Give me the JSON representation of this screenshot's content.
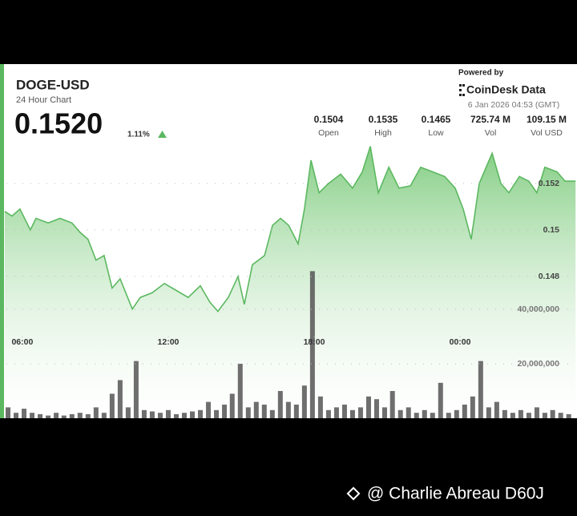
{
  "header": {
    "title": "DOGE-USD",
    "subtitle": "24 Hour Chart",
    "price": "0.1520",
    "change": "1.11%",
    "powered_by": "Powered by",
    "brand": "CoinDesk Data",
    "timestamp": "6 Jan 2026 04:53 (GMT)"
  },
  "stats": [
    {
      "value": "0.1504",
      "label": "Open"
    },
    {
      "value": "0.1535",
      "label": "High"
    },
    {
      "value": "0.1465",
      "label": "Low"
    },
    {
      "value": "725.74 M",
      "label": "Vol"
    },
    {
      "value": "109.15 M",
      "label": "Vol USD"
    }
  ],
  "chart_data": [
    {
      "type": "area",
      "color": "#5cb860",
      "x": [
        5.27,
        5.57,
        5.9,
        6.33,
        6.56,
        7.06,
        7.55,
        8.04,
        8.37,
        8.7,
        9.03,
        9.36,
        9.69,
        10.02,
        10.52,
        10.85,
        11.34,
        11.84,
        12.33,
        12.82,
        13.32,
        13.71,
        14.04,
        14.47,
        14.87,
        15.13,
        15.46,
        15.96,
        16.29,
        16.62,
        16.95,
        17.34,
        17.6,
        17.87,
        18.2,
        18.59,
        19.09,
        19.58,
        19.98,
        20.31,
        20.64,
        21.07,
        21.49,
        21.96,
        22.38,
        22.88,
        23.37,
        23.8,
        24.13,
        24.46,
        24.79,
        25.32,
        25.68,
        26.01,
        26.44,
        26.83,
        27.16,
        27.49,
        27.99,
        28.32,
        28.75
      ],
      "values": [
        0.1508,
        0.1506,
        0.1509,
        0.15,
        0.1505,
        0.1503,
        0.1505,
        0.1503,
        0.1499,
        0.1496,
        0.1487,
        0.1489,
        0.1475,
        0.1479,
        0.1466,
        0.1471,
        0.1473,
        0.1477,
        0.1474,
        0.1471,
        0.1476,
        0.1469,
        0.1465,
        0.1471,
        0.148,
        0.1468,
        0.1485,
        0.1489,
        0.1502,
        0.1505,
        0.1502,
        0.1494,
        0.1509,
        0.153,
        0.1516,
        0.152,
        0.1524,
        0.1518,
        0.1525,
        0.1536,
        0.1516,
        0.1527,
        0.1518,
        0.1519,
        0.1527,
        0.1525,
        0.1523,
        0.1518,
        0.1509,
        0.1496,
        0.152,
        0.1533,
        0.152,
        0.1516,
        0.1523,
        0.1521,
        0.1516,
        0.1527,
        0.1525,
        0.1521,
        0.1521
      ],
      "xlim": [
        5.08,
        28.81
      ],
      "ylim": [
        0.1419,
        0.15369
      ],
      "xticks": [
        {
          "value": 6,
          "label": "06:00"
        },
        {
          "value": 12,
          "label": "12:00"
        },
        {
          "value": 18,
          "label": "18:00"
        },
        {
          "value": 24,
          "label": "00:00"
        }
      ],
      "yticks": [
        0.148,
        0.15,
        0.152
      ],
      "grid": true
    },
    {
      "type": "bar",
      "color": "#555555",
      "x": [
        5.41,
        5.74,
        6.07,
        6.4,
        6.73,
        7.06,
        7.39,
        7.71,
        8.04,
        8.37,
        8.7,
        9.03,
        9.36,
        9.69,
        10.02,
        10.35,
        10.68,
        11.01,
        11.34,
        11.67,
        12.0,
        12.33,
        12.66,
        12.99,
        13.32,
        13.65,
        13.98,
        14.31,
        14.63,
        14.96,
        15.29,
        15.62,
        15.95,
        16.28,
        16.61,
        16.94,
        17.27,
        17.6,
        17.93,
        18.26,
        18.59,
        18.92,
        19.25,
        19.58,
        19.91,
        20.24,
        20.57,
        20.9,
        21.22,
        21.55,
        21.88,
        22.21,
        22.54,
        22.87,
        23.2,
        23.53,
        23.86,
        24.19,
        24.52,
        24.85,
        25.18,
        25.51,
        25.84,
        26.17,
        26.5,
        26.83,
        27.16,
        27.49,
        27.81,
        28.14,
        28.47
      ],
      "values": [
        4000000,
        2000000,
        3500000,
        2000000,
        1500000,
        1000000,
        2000000,
        1000000,
        1500000,
        2000000,
        1500000,
        4000000,
        2000000,
        9000000,
        14000000,
        4000000,
        21000000,
        3000000,
        2500000,
        2000000,
        3000000,
        1500000,
        2000000,
        2500000,
        3000000,
        6000000,
        3000000,
        5000000,
        9000000,
        20000000,
        4000000,
        6000000,
        5000000,
        3000000,
        10000000,
        6000000,
        5000000,
        12000000,
        54000000,
        8000000,
        3000000,
        4000000,
        5000000,
        3000000,
        4000000,
        8000000,
        7000000,
        4000000,
        10000000,
        3000000,
        4000000,
        2000000,
        3000000,
        2000000,
        13000000,
        2000000,
        3000000,
        5000000,
        8000000,
        21000000,
        4000000,
        6000000,
        3000000,
        2000000,
        3000000,
        2000000,
        4000000,
        2000000,
        3000000,
        2000000,
        1500000
      ],
      "xlim": [
        5.08,
        28.81
      ],
      "ylim": [
        0,
        100600000
      ],
      "yticks": [
        {
          "value": 20000000,
          "label": "20,000,000"
        },
        {
          "value": 40000000,
          "label": "40,000,000"
        }
      ],
      "grid": true
    }
  ],
  "watermark": "@ Charlie Abreau D60J"
}
